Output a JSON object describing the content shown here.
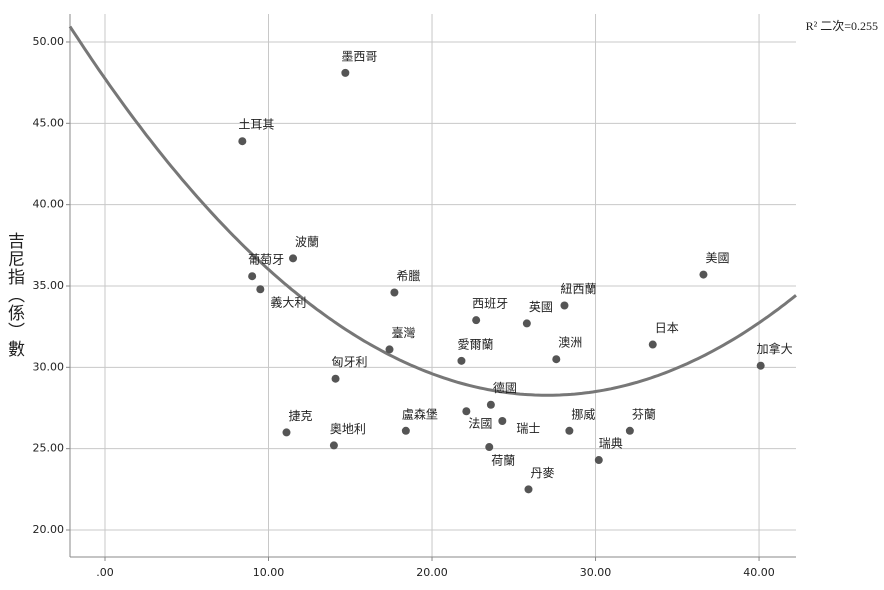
{
  "chart_data": {
    "type": "scatter",
    "y_label": "吉尼指（係）數",
    "annotation": "R² 二次=0.255",
    "labels": [
      "墨西哥",
      "土耳其",
      "葡萄牙",
      "義大利",
      "波蘭",
      "希臘",
      "臺灣",
      "匈牙利",
      "捷克",
      "奧地利",
      "盧森堡",
      "西班牙",
      "愛爾蘭",
      "德國",
      "瑞士",
      "法國",
      "荷蘭",
      "丹麥",
      "英國",
      "紐西蘭",
      "澳洲",
      "挪威",
      "瑞典",
      "芬蘭",
      "日本",
      "美國",
      "加拿大"
    ],
    "x": [
      14.7,
      8.4,
      9.0,
      9.5,
      11.5,
      17.7,
      17.4,
      14.1,
      11.1,
      14.0,
      18.4,
      22.7,
      21.8,
      23.6,
      24.3,
      22.1,
      23.5,
      25.9,
      25.8,
      28.1,
      27.6,
      28.4,
      30.2,
      32.1,
      33.5,
      36.6,
      40.1
    ],
    "values": [
      48.1,
      43.9,
      35.6,
      34.8,
      36.7,
      34.6,
      31.1,
      29.3,
      26.0,
      25.2,
      26.1,
      32.9,
      30.4,
      27.7,
      26.7,
      27.3,
      25.1,
      22.5,
      32.7,
      33.8,
      30.5,
      26.1,
      24.3,
      26.1,
      31.4,
      35.7,
      30.1
    ],
    "color": "#555555",
    "fit_color": "#777777",
    "xlim": [
      -2.14,
      42.26
    ],
    "ylim": [
      18.34,
      51.72
    ],
    "xticks": [
      {
        "value": 0,
        "label": ".00"
      },
      {
        "value": 10,
        "label": "10.00"
      },
      {
        "value": 20,
        "label": "20.00"
      },
      {
        "value": 30,
        "label": "30.00"
      },
      {
        "value": 40,
        "label": "40.00"
      }
    ],
    "yticks": [
      {
        "value": 20,
        "label": "20.00"
      },
      {
        "value": 25,
        "label": "25.00"
      },
      {
        "value": 30,
        "label": "30.00"
      },
      {
        "value": 35,
        "label": "35.00"
      },
      {
        "value": 40,
        "label": "40.00"
      },
      {
        "value": 45,
        "label": "45.00"
      },
      {
        "value": 50,
        "label": "50.00"
      }
    ],
    "grid": true
  }
}
